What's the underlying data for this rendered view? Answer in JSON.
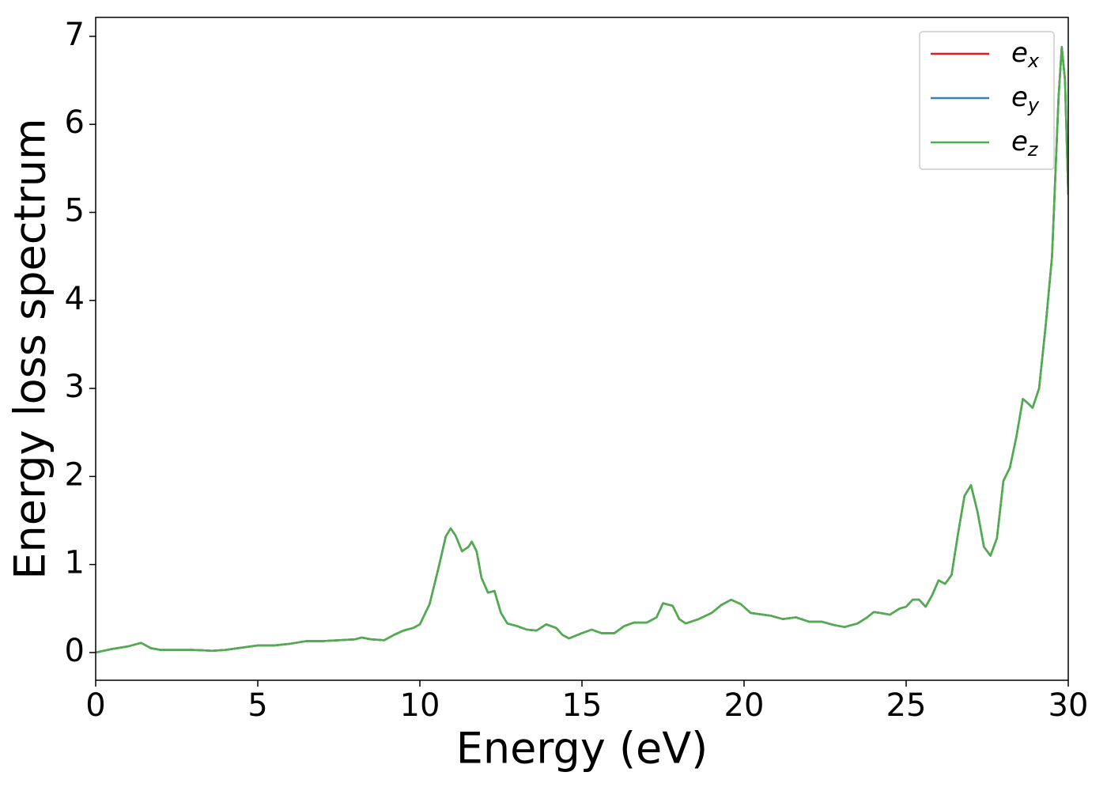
{
  "chart_data": {
    "type": "line",
    "xlabel": "Energy (eV)",
    "ylabel": "Energy loss spectrum",
    "xlim": [
      0,
      30
    ],
    "ylim": [
      -0.315,
      7.215
    ],
    "xticks": [
      0,
      5,
      10,
      15,
      20,
      25,
      30
    ],
    "yticks": [
      0,
      1,
      2,
      3,
      4,
      5,
      6,
      7
    ],
    "legend": "upper right",
    "x": [
      0,
      0.5,
      1,
      1.4,
      1.7,
      2,
      3,
      3.6,
      4,
      5,
      5.5,
      6,
      6.5,
      7,
      7.5,
      8,
      8.2,
      8.5,
      8.9,
      9.2,
      9.5,
      9.8,
      10,
      10.3,
      10.6,
      10.8,
      10.95,
      11.1,
      11.3,
      11.5,
      11.6,
      11.75,
      11.9,
      12.1,
      12.3,
      12.5,
      12.7,
      13,
      13.3,
      13.6,
      13.9,
      14.2,
      14.4,
      14.6,
      15,
      15.3,
      15.6,
      16,
      16.3,
      16.6,
      17,
      17.3,
      17.5,
      17.8,
      18,
      18.2,
      18.6,
      19,
      19.3,
      19.6,
      19.9,
      20.2,
      20.8,
      21.2,
      21.6,
      22,
      22.4,
      22.8,
      23.1,
      23.5,
      23.8,
      24,
      24.2,
      24.5,
      24.8,
      25,
      25.2,
      25.4,
      25.6,
      25.8,
      26,
      26.2,
      26.4,
      26.6,
      26.8,
      27,
      27.2,
      27.4,
      27.6,
      27.8,
      28,
      28.2,
      28.4,
      28.6,
      28.7,
      28.9,
      29.1,
      29.3,
      29.5,
      29.7,
      29.8,
      29.9,
      30
    ],
    "series": [
      {
        "name": "e_x",
        "color": "#e41a1c",
        "values": [
          0,
          0.04,
          0.07,
          0.11,
          0.05,
          0.03,
          0.03,
          0.02,
          0.03,
          0.08,
          0.08,
          0.1,
          0.13,
          0.13,
          0.14,
          0.15,
          0.17,
          0.15,
          0.14,
          0.2,
          0.25,
          0.28,
          0.32,
          0.55,
          1.0,
          1.32,
          1.41,
          1.33,
          1.15,
          1.2,
          1.26,
          1.15,
          0.85,
          0.68,
          0.7,
          0.45,
          0.33,
          0.3,
          0.26,
          0.25,
          0.32,
          0.28,
          0.2,
          0.16,
          0.22,
          0.26,
          0.22,
          0.22,
          0.3,
          0.34,
          0.34,
          0.4,
          0.56,
          0.53,
          0.38,
          0.33,
          0.38,
          0.45,
          0.54,
          0.6,
          0.55,
          0.45,
          0.42,
          0.38,
          0.4,
          0.35,
          0.35,
          0.31,
          0.29,
          0.33,
          0.4,
          0.46,
          0.45,
          0.43,
          0.5,
          0.52,
          0.6,
          0.6,
          0.52,
          0.65,
          0.82,
          0.78,
          0.88,
          1.35,
          1.78,
          1.9,
          1.6,
          1.2,
          1.1,
          1.3,
          1.95,
          2.1,
          2.45,
          2.88,
          2.85,
          2.78,
          3.0,
          3.7,
          4.5,
          6.3,
          6.88,
          6.5,
          5.2
        ]
      },
      {
        "name": "e_y",
        "color": "#377eb8",
        "values": [
          0,
          0.04,
          0.07,
          0.11,
          0.05,
          0.03,
          0.03,
          0.02,
          0.03,
          0.08,
          0.08,
          0.1,
          0.13,
          0.13,
          0.14,
          0.15,
          0.17,
          0.15,
          0.14,
          0.2,
          0.25,
          0.28,
          0.32,
          0.55,
          1.0,
          1.32,
          1.41,
          1.33,
          1.15,
          1.2,
          1.26,
          1.15,
          0.85,
          0.68,
          0.7,
          0.45,
          0.33,
          0.3,
          0.26,
          0.25,
          0.32,
          0.28,
          0.2,
          0.16,
          0.22,
          0.26,
          0.22,
          0.22,
          0.3,
          0.34,
          0.34,
          0.4,
          0.56,
          0.53,
          0.38,
          0.33,
          0.38,
          0.45,
          0.54,
          0.6,
          0.55,
          0.45,
          0.42,
          0.38,
          0.4,
          0.35,
          0.35,
          0.31,
          0.29,
          0.33,
          0.4,
          0.46,
          0.45,
          0.43,
          0.5,
          0.52,
          0.6,
          0.6,
          0.52,
          0.65,
          0.82,
          0.78,
          0.88,
          1.35,
          1.78,
          1.9,
          1.6,
          1.2,
          1.1,
          1.3,
          1.95,
          2.1,
          2.45,
          2.88,
          2.85,
          2.78,
          3.0,
          3.7,
          4.5,
          6.3,
          6.88,
          6.5,
          5.2
        ]
      },
      {
        "name": "e_z",
        "color": "#4daf4a",
        "values": [
          0,
          0.04,
          0.07,
          0.11,
          0.05,
          0.03,
          0.03,
          0.02,
          0.03,
          0.08,
          0.08,
          0.1,
          0.13,
          0.13,
          0.14,
          0.15,
          0.17,
          0.15,
          0.14,
          0.2,
          0.25,
          0.28,
          0.32,
          0.55,
          1.0,
          1.32,
          1.41,
          1.33,
          1.15,
          1.2,
          1.26,
          1.15,
          0.85,
          0.68,
          0.7,
          0.45,
          0.33,
          0.3,
          0.26,
          0.25,
          0.32,
          0.28,
          0.2,
          0.16,
          0.22,
          0.26,
          0.22,
          0.22,
          0.3,
          0.34,
          0.34,
          0.4,
          0.56,
          0.53,
          0.38,
          0.33,
          0.38,
          0.45,
          0.54,
          0.6,
          0.55,
          0.45,
          0.42,
          0.38,
          0.4,
          0.35,
          0.35,
          0.31,
          0.29,
          0.33,
          0.4,
          0.46,
          0.45,
          0.43,
          0.5,
          0.52,
          0.6,
          0.6,
          0.52,
          0.65,
          0.82,
          0.78,
          0.88,
          1.35,
          1.78,
          1.9,
          1.6,
          1.2,
          1.1,
          1.3,
          1.95,
          2.1,
          2.45,
          2.88,
          2.85,
          2.78,
          3.0,
          3.7,
          4.5,
          6.3,
          6.88,
          6.5,
          5.2
        ]
      }
    ]
  }
}
